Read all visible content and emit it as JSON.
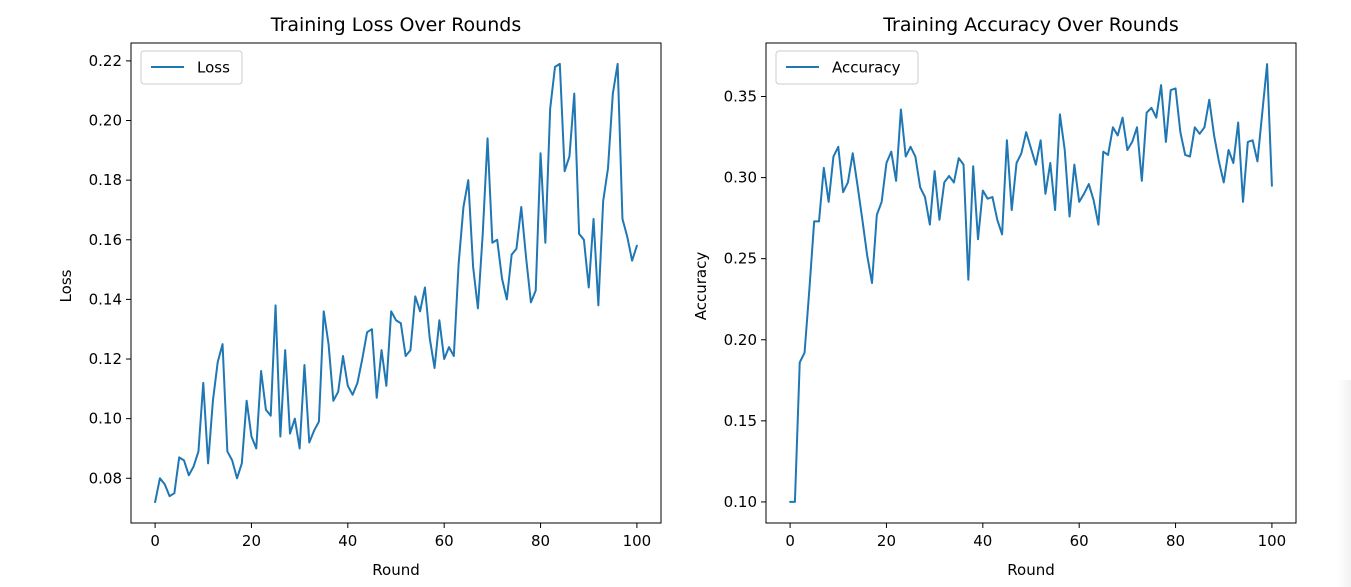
{
  "chart_data": [
    {
      "type": "line",
      "title": "Training Loss Over Rounds",
      "xlabel": "Round",
      "ylabel": "Loss",
      "xlim": [
        -5,
        105
      ],
      "ylim": [
        0.065,
        0.226
      ],
      "xticks": [
        0,
        20,
        40,
        60,
        80,
        100
      ],
      "xtick_labels": [
        "0",
        "20",
        "40",
        "60",
        "80",
        "100"
      ],
      "yticks": [
        0.08,
        0.1,
        0.12,
        0.14,
        0.16,
        0.18,
        0.2,
        0.22
      ],
      "ytick_labels": [
        "0.08",
        "0.10",
        "0.12",
        "0.14",
        "0.16",
        "0.18",
        "0.20",
        "0.22"
      ],
      "grid": false,
      "legend": "upper-left",
      "series": [
        {
          "name": "Loss",
          "color": "#1f77b4",
          "x": [
            0,
            1,
            2,
            3,
            4,
            5,
            6,
            7,
            8,
            9,
            10,
            11,
            12,
            13,
            14,
            15,
            16,
            17,
            18,
            19,
            20,
            21,
            22,
            23,
            24,
            25,
            26,
            27,
            28,
            29,
            30,
            31,
            32,
            33,
            34,
            35,
            36,
            37,
            38,
            39,
            40,
            41,
            42,
            43,
            44,
            45,
            46,
            47,
            48,
            49,
            50,
            51,
            52,
            53,
            54,
            55,
            56,
            57,
            58,
            59,
            60,
            61,
            62,
            63,
            64,
            65,
            66,
            67,
            68,
            69,
            70,
            71,
            72,
            73,
            74,
            75,
            76,
            77,
            78,
            79,
            80,
            81,
            82,
            83,
            84,
            85,
            86,
            87,
            88,
            89,
            90,
            91,
            92,
            93,
            94,
            95,
            96,
            97,
            98,
            99,
            100
          ],
          "y": [
            0.072,
            0.08,
            0.078,
            0.074,
            0.075,
            0.087,
            0.086,
            0.081,
            0.084,
            0.089,
            0.112,
            0.085,
            0.106,
            0.119,
            0.125,
            0.089,
            0.086,
            0.08,
            0.085,
            0.106,
            0.094,
            0.09,
            0.116,
            0.103,
            0.101,
            0.138,
            0.094,
            0.123,
            0.095,
            0.1,
            0.09,
            0.118,
            0.092,
            0.096,
            0.099,
            0.136,
            0.125,
            0.106,
            0.109,
            0.121,
            0.111,
            0.108,
            0.112,
            0.12,
            0.129,
            0.13,
            0.107,
            0.123,
            0.111,
            0.136,
            0.133,
            0.132,
            0.121,
            0.123,
            0.141,
            0.136,
            0.144,
            0.127,
            0.117,
            0.133,
            0.12,
            0.124,
            0.121,
            0.152,
            0.171,
            0.18,
            0.151,
            0.137,
            0.162,
            0.194,
            0.159,
            0.16,
            0.147,
            0.14,
            0.155,
            0.157,
            0.171,
            0.154,
            0.139,
            0.143,
            0.189,
            0.159,
            0.204,
            0.218,
            0.219,
            0.183,
            0.188,
            0.209,
            0.162,
            0.16,
            0.144,
            0.167,
            0.138,
            0.173,
            0.184,
            0.209,
            0.219,
            0.167,
            0.161,
            0.153,
            0.158
          ]
        }
      ]
    },
    {
      "type": "line",
      "title": "Training Accuracy Over Rounds",
      "xlabel": "Round",
      "ylabel": "Accuracy",
      "xlim": [
        -5,
        105
      ],
      "ylim": [
        0.087,
        0.383
      ],
      "xticks": [
        0,
        20,
        40,
        60,
        80,
        100
      ],
      "xtick_labels": [
        "0",
        "20",
        "40",
        "60",
        "80",
        "100"
      ],
      "yticks": [
        0.1,
        0.15,
        0.2,
        0.25,
        0.3,
        0.35
      ],
      "ytick_labels": [
        "0.10",
        "0.15",
        "0.20",
        "0.25",
        "0.30",
        "0.35"
      ],
      "grid": false,
      "legend": "upper-left",
      "series": [
        {
          "name": "Accuracy",
          "color": "#1f77b4",
          "x": [
            0,
            1,
            2,
            3,
            4,
            5,
            6,
            7,
            8,
            9,
            10,
            11,
            12,
            13,
            14,
            15,
            16,
            17,
            18,
            19,
            20,
            21,
            22,
            23,
            24,
            25,
            26,
            27,
            28,
            29,
            30,
            31,
            32,
            33,
            34,
            35,
            36,
            37,
            38,
            39,
            40,
            41,
            42,
            43,
            44,
            45,
            46,
            47,
            48,
            49,
            50,
            51,
            52,
            53,
            54,
            55,
            56,
            57,
            58,
            59,
            60,
            61,
            62,
            63,
            64,
            65,
            66,
            67,
            68,
            69,
            70,
            71,
            72,
            73,
            74,
            75,
            76,
            77,
            78,
            79,
            80,
            81,
            82,
            83,
            84,
            85,
            86,
            87,
            88,
            89,
            90,
            91,
            92,
            93,
            94,
            95,
            96,
            97,
            98,
            99,
            100
          ],
          "y": [
            0.1,
            0.1,
            0.186,
            0.192,
            0.231,
            0.273,
            0.273,
            0.306,
            0.285,
            0.313,
            0.319,
            0.291,
            0.297,
            0.315,
            0.295,
            0.274,
            0.252,
            0.235,
            0.277,
            0.285,
            0.309,
            0.316,
            0.298,
            0.342,
            0.313,
            0.319,
            0.313,
            0.294,
            0.288,
            0.271,
            0.304,
            0.274,
            0.297,
            0.301,
            0.297,
            0.312,
            0.308,
            0.237,
            0.307,
            0.262,
            0.292,
            0.287,
            0.288,
            0.274,
            0.265,
            0.323,
            0.28,
            0.309,
            0.315,
            0.328,
            0.318,
            0.308,
            0.323,
            0.29,
            0.309,
            0.28,
            0.339,
            0.317,
            0.276,
            0.308,
            0.285,
            0.29,
            0.296,
            0.286,
            0.271,
            0.316,
            0.314,
            0.331,
            0.326,
            0.337,
            0.317,
            0.322,
            0.331,
            0.298,
            0.34,
            0.343,
            0.337,
            0.357,
            0.322,
            0.354,
            0.355,
            0.328,
            0.314,
            0.313,
            0.331,
            0.327,
            0.331,
            0.348,
            0.326,
            0.31,
            0.297,
            0.317,
            0.309,
            0.334,
            0.285,
            0.322,
            0.323,
            0.31,
            0.34,
            0.37,
            0.295
          ]
        }
      ]
    }
  ]
}
